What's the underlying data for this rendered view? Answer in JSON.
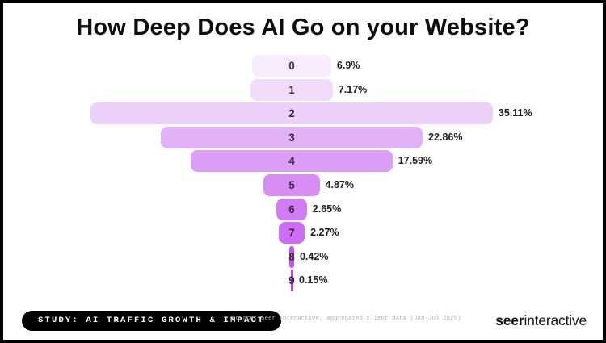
{
  "chart_data": {
    "type": "bar",
    "variant": "centered-funnel-horizontal",
    "title": "How Deep Does AI Go on your Website?",
    "categories": [
      "0",
      "1",
      "2",
      "3",
      "4",
      "5",
      "6",
      "7",
      "8",
      "9"
    ],
    "values": [
      6.9,
      7.17,
      35.11,
      22.86,
      17.59,
      4.87,
      2.65,
      2.27,
      0.42,
      0.15
    ],
    "value_labels": [
      "6.9%",
      "7.17%",
      "35.11%",
      "22.86%",
      "17.59%",
      "4.87%",
      "2.65%",
      "2.27%",
      "0.42%",
      "0.15%"
    ],
    "bar_colors": [
      "#f7ecfb",
      "#f2dcfa",
      "#edd0f9",
      "#e3b2f6",
      "#dc9ef4",
      "#d78df3",
      "#d27cf3",
      "#cd6cf4",
      "#c356f1",
      "#bb44ef"
    ],
    "xlabel": "",
    "ylabel": "",
    "legend": "none",
    "grid": "off",
    "xlim_percent": [
      0,
      35.11
    ]
  },
  "footer": {
    "study_label": "STUDY: AI TRAFFIC GROWTH & IMPACT",
    "source": "Source: Seer Interactive, aggregated client data (Jan-Jul 2025)",
    "logo_bold": "seer",
    "logo_regular": "interactive"
  }
}
